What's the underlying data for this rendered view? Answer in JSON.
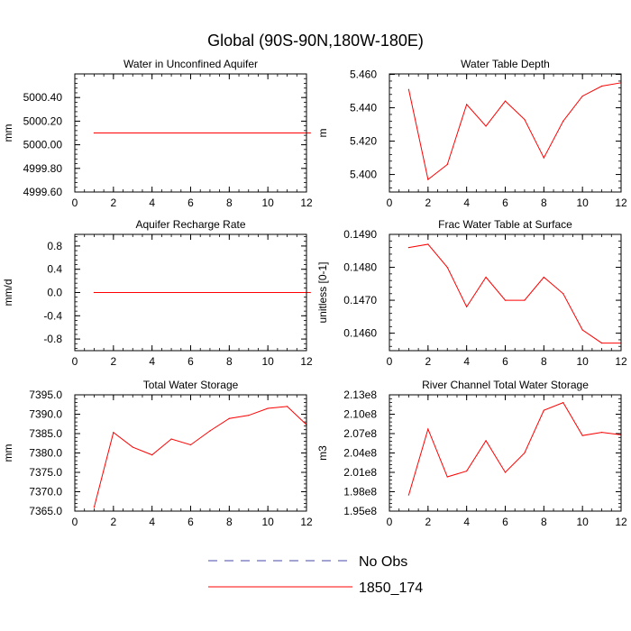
{
  "page_title": "Global (90S-90N,180W-180E)",
  "legend": {
    "entries": [
      {
        "label": "No Obs",
        "color": "#4a4aa8",
        "style": "dashed"
      },
      {
        "label": "1850_174",
        "color": "#ff0000",
        "style": "solid"
      }
    ]
  },
  "chart_data": [
    {
      "type": "line",
      "title": "Water in Unconfined Aquifer",
      "ylabel": "mm",
      "xlabel": "",
      "xlim": [
        0,
        12
      ],
      "ylim": [
        4999.6,
        5000.6
      ],
      "x_ticks": [
        0,
        2,
        4,
        6,
        8,
        10,
        12
      ],
      "x_tick_labels": [
        "0",
        "2",
        "4",
        "6",
        "8",
        "10",
        "12"
      ],
      "y_ticks": [
        4999.6,
        4999.8,
        5000.0,
        5000.2,
        5000.4
      ],
      "y_tick_labels": [
        "4999.60",
        "4999.80",
        "5000.00",
        "5000.20",
        "5000.40"
      ],
      "grid": false,
      "series": [
        {
          "name": "1850_174",
          "color": "#ff0000",
          "x": [
            1,
            12.2
          ],
          "values": [
            5000.1,
            5000.1
          ]
        }
      ]
    },
    {
      "type": "line",
      "title": "Water Table Depth",
      "ylabel": "m",
      "xlabel": "",
      "xlim": [
        0,
        12
      ],
      "ylim": [
        5.3895,
        5.4603
      ],
      "x_ticks": [
        0,
        2,
        4,
        6,
        8,
        10,
        12
      ],
      "x_tick_labels": [
        "0",
        "2",
        "4",
        "6",
        "8",
        "10",
        "12"
      ],
      "y_ticks": [
        5.4,
        5.42,
        5.44,
        5.46
      ],
      "y_tick_labels": [
        "5.400",
        "5.420",
        "5.440",
        "5.460"
      ],
      "grid": false,
      "series": [
        {
          "name": "1850_174",
          "color": "#ff0000",
          "x": [
            1,
            2,
            3,
            4,
            5,
            6,
            7,
            8,
            9,
            10,
            11,
            12
          ],
          "values": [
            5.451,
            5.397,
            5.406,
            5.442,
            5.429,
            5.444,
            5.433,
            5.41,
            5.432,
            5.447,
            5.453,
            5.455
          ]
        }
      ]
    },
    {
      "type": "line",
      "title": "Aquifer Recharge Rate",
      "ylabel": "mm/d",
      "xlabel": "",
      "xlim": [
        0,
        12
      ],
      "ylim": [
        -1.0,
        1.0
      ],
      "x_ticks": [
        0,
        2,
        4,
        6,
        8,
        10,
        12
      ],
      "x_tick_labels": [
        "0",
        "2",
        "4",
        "6",
        "8",
        "10",
        "12"
      ],
      "y_ticks": [
        -0.8,
        -0.4,
        0.0,
        0.4,
        0.8
      ],
      "y_tick_labels": [
        "-0.8",
        "-0.4",
        "0.0",
        "0.4",
        "0.8"
      ],
      "grid": false,
      "series": [
        {
          "name": "1850_174",
          "color": "#ff0000",
          "x": [
            1,
            12.2
          ],
          "values": [
            0.0,
            0.0
          ]
        }
      ]
    },
    {
      "type": "line",
      "title": "Frac Water Table at Surface",
      "ylabel": "unitless [0-1]",
      "xlabel": "",
      "xlim": [
        0,
        12
      ],
      "ylim": [
        0.14547,
        0.149
      ],
      "x_ticks": [
        0,
        2,
        4,
        6,
        8,
        10,
        12
      ],
      "x_tick_labels": [
        "0",
        "2",
        "4",
        "6",
        "8",
        "10",
        "12"
      ],
      "y_ticks": [
        0.146,
        0.147,
        0.148,
        0.149
      ],
      "y_tick_labels": [
        "0.1460",
        "0.1470",
        "0.1480",
        "0.1490"
      ],
      "grid": false,
      "series": [
        {
          "name": "1850_174",
          "color": "#ff0000",
          "x": [
            1,
            2,
            3,
            4,
            5,
            6,
            7,
            8,
            9,
            10,
            11,
            12
          ],
          "values": [
            0.1486,
            0.1487,
            0.148,
            0.1468,
            0.1477,
            0.147,
            0.147,
            0.1477,
            0.1472,
            0.1461,
            0.1457,
            0.1457
          ]
        }
      ]
    },
    {
      "type": "line",
      "title": "Total Water Storage",
      "ylabel": "mm",
      "xlabel": "",
      "xlim": [
        0,
        12
      ],
      "ylim": [
        7365.0,
        7395.0
      ],
      "x_ticks": [
        0,
        2,
        4,
        6,
        8,
        10,
        12
      ],
      "x_tick_labels": [
        "0",
        "2",
        "4",
        "6",
        "8",
        "10",
        "12"
      ],
      "y_ticks": [
        7365.0,
        7370.0,
        7375.0,
        7380.0,
        7385.0,
        7390.0,
        7395.0
      ],
      "y_tick_labels": [
        "7365.0",
        "7370.0",
        "7375.0",
        "7380.0",
        "7385.0",
        "7390.0",
        "7395.0"
      ],
      "grid": false,
      "series": [
        {
          "name": "1850_174",
          "color": "#ff0000",
          "x": [
            1,
            2,
            3,
            4,
            5,
            6,
            7,
            8,
            9,
            10,
            11,
            12
          ],
          "values": [
            7366.0,
            7385.3,
            7381.5,
            7379.5,
            7383.6,
            7382.1,
            7385.7,
            7388.9,
            7389.7,
            7391.5,
            7392.0,
            7387.3
          ]
        }
      ]
    },
    {
      "type": "line",
      "title": "River Channel Total Water Storage",
      "ylabel": "m3",
      "xlabel": "",
      "xlim": [
        0,
        12
      ],
      "ylim": [
        195000000,
        213000000
      ],
      "x_ticks": [
        0,
        2,
        4,
        6,
        8,
        10,
        12
      ],
      "x_tick_labels": [
        "0",
        "2",
        "4",
        "6",
        "8",
        "10",
        "12"
      ],
      "y_ticks": [
        195000000,
        198000000,
        201000000,
        204000000,
        207000000,
        210000000,
        213000000
      ],
      "y_tick_labels": [
        "1.95e8",
        "1.98e8",
        "2.01e8",
        "2.04e8",
        "2.07e8",
        "2.10e8",
        "2.13e8"
      ],
      "grid": false,
      "series": [
        {
          "name": "1850_174",
          "color": "#ff0000",
          "x": [
            1,
            2,
            3,
            4,
            5,
            6,
            7,
            8,
            9,
            10,
            11,
            12
          ],
          "values": [
            197500000,
            207700000,
            200300000,
            201200000,
            205900000,
            201000000,
            204000000,
            210600000,
            211800000,
            206700000,
            207200000,
            206800000
          ]
        }
      ]
    }
  ]
}
